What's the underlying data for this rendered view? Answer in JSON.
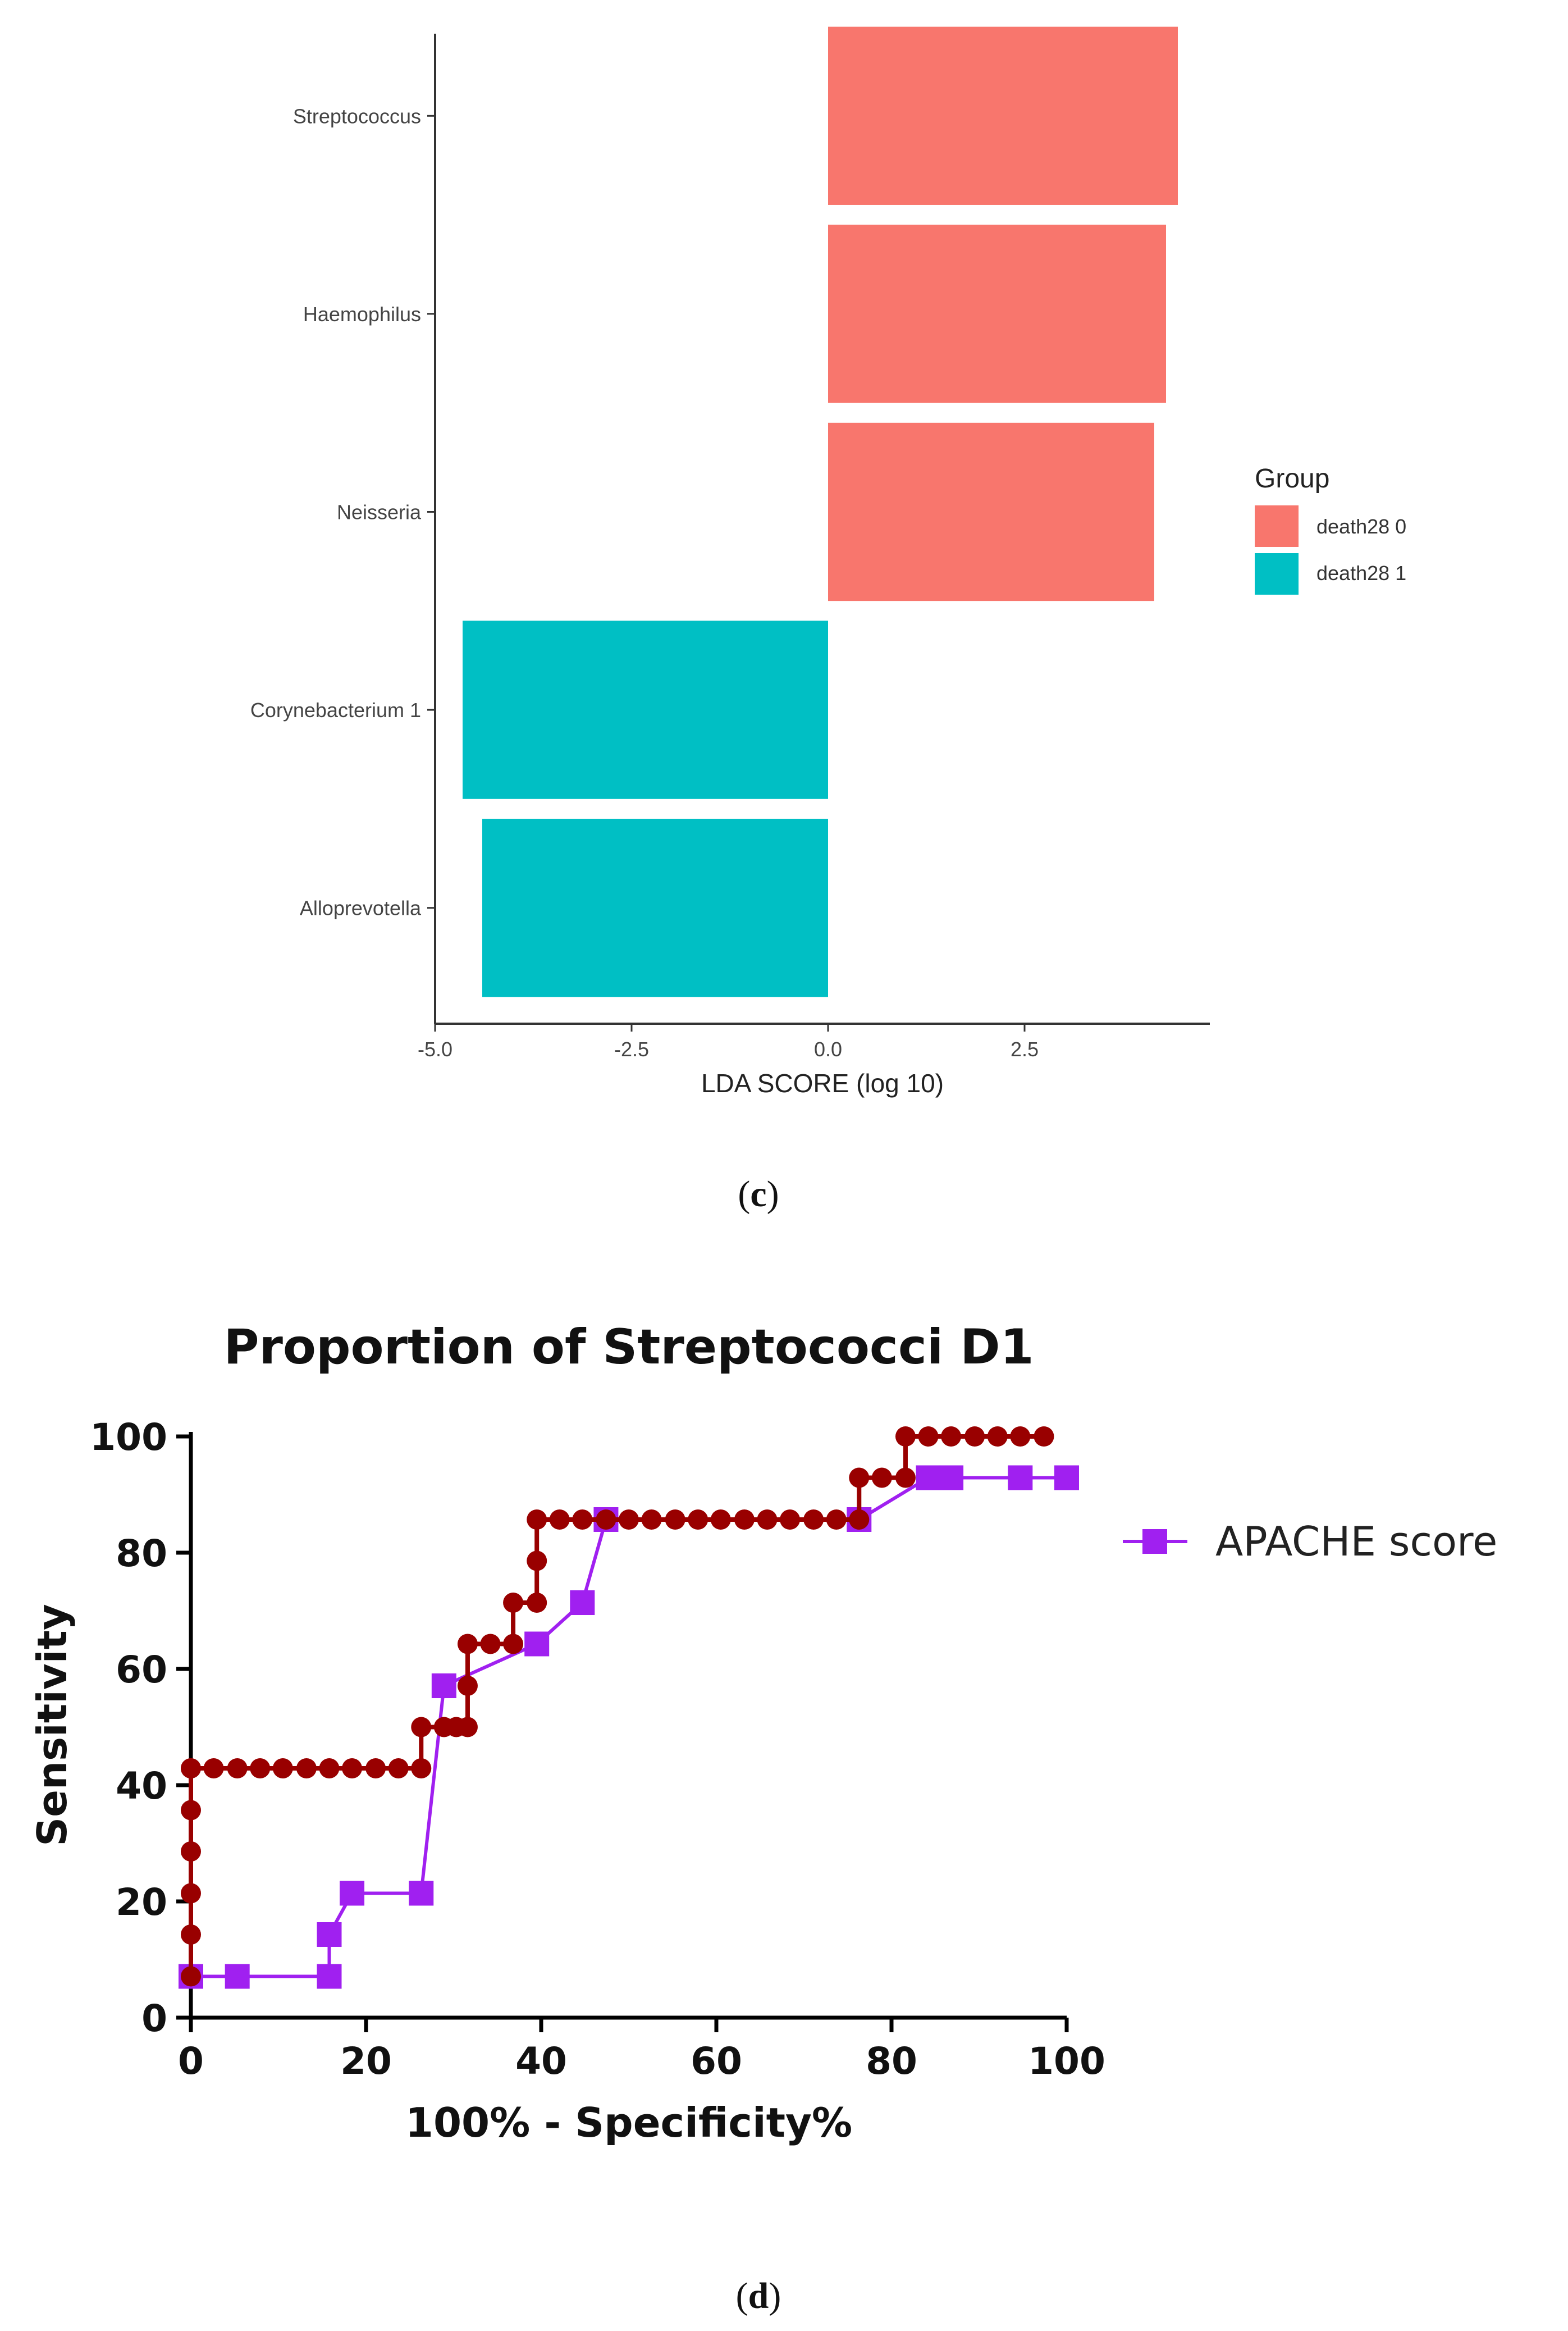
{
  "chart_data": [
    {
      "type": "bar",
      "orientation": "horizontal",
      "title": "",
      "xlabel": "LDA SCORE (log 10)",
      "ylabel": "",
      "xlim": [
        -5.0,
        5.0
      ],
      "xticks": [
        "-5.0",
        "-2.5",
        "0.0",
        "2.5"
      ],
      "xtick_values": [
        -5.0,
        -2.5,
        0.0,
        2.5
      ],
      "categories": [
        "Streptococcus",
        "Haemophilus",
        "Neisseria",
        "Corynebacterium 1",
        "Alloprevotella"
      ],
      "values": [
        4.45,
        4.3,
        4.15,
        -4.65,
        -4.4
      ],
      "groups": [
        "death28 0",
        "death28 0",
        "death28 0",
        "death28 1",
        "death28 1"
      ],
      "legend": {
        "title": "Group",
        "position": "right",
        "entries": [
          {
            "label": "death28 0",
            "color": "#F8766D"
          },
          {
            "label": "death28 1",
            "color": "#00BFC4"
          }
        ]
      },
      "grid": false,
      "panel_label": "(c)",
      "panel_letter": "c"
    },
    {
      "type": "line",
      "title": "Proportion of Streptococci D1",
      "xlabel": "100% - Specificity%",
      "ylabel": "Sensitivity",
      "xlim": [
        0,
        100
      ],
      "ylim": [
        0,
        100
      ],
      "xticks": [
        "0",
        "20",
        "40",
        "60",
        "80",
        "100"
      ],
      "yticks": [
        "0",
        "20",
        "40",
        "60",
        "80",
        "100"
      ],
      "tick_values": [
        0,
        20,
        40,
        60,
        80,
        100
      ],
      "grid": false,
      "legend": {
        "position": "right",
        "entries": [
          {
            "label": "APACHE score",
            "color": "#A020F0",
            "marker": "square"
          }
        ]
      },
      "series": [
        {
          "name": "Proportion of Streptococci D1",
          "color": "#990000",
          "marker": "circle",
          "step": true,
          "in_legend": false,
          "x": [
            0,
            0,
            0,
            0,
            0,
            0,
            0,
            2.6,
            5.3,
            7.9,
            10.5,
            13.2,
            15.8,
            18.4,
            21.1,
            23.7,
            26.3,
            26.3,
            28.9,
            30.3,
            31.6,
            31.6,
            31.6,
            34.2,
            36.8,
            36.8,
            39.5,
            39.5,
            39.5,
            42.1,
            44.7,
            47.4,
            50,
            52.6,
            55.3,
            57.9,
            60.5,
            63.2,
            65.8,
            68.4,
            71.1,
            73.7,
            76.3,
            76.3,
            78.9,
            81.6,
            81.6,
            84.2,
            86.8,
            89.5,
            92.1,
            94.7,
            97.4
          ],
          "y": [
            7.1,
            14.3,
            21.4,
            28.6,
            35.7,
            42.9,
            42.9,
            42.9,
            42.9,
            42.9,
            42.9,
            42.9,
            42.9,
            42.9,
            42.9,
            42.9,
            42.9,
            50,
            50,
            50,
            50,
            57.1,
            64.3,
            64.3,
            64.3,
            71.4,
            71.4,
            78.6,
            85.7,
            85.7,
            85.7,
            85.7,
            85.7,
            85.7,
            85.7,
            85.7,
            85.7,
            85.7,
            85.7,
            85.7,
            85.7,
            85.7,
            85.7,
            92.9,
            92.9,
            92.9,
            100,
            100,
            100,
            100,
            100,
            100,
            100
          ]
        },
        {
          "name": "APACHE score",
          "color": "#A020F0",
          "marker": "square",
          "step": false,
          "in_legend": true,
          "x": [
            0,
            5.3,
            15.8,
            15.8,
            18.4,
            26.3,
            28.9,
            39.5,
            44.7,
            47.4,
            76.3,
            84.2,
            86.8,
            94.7,
            100
          ],
          "y": [
            7.1,
            7.1,
            7.1,
            14.3,
            21.4,
            21.4,
            57.1,
            64.3,
            71.4,
            85.7,
            85.7,
            92.9,
            92.9,
            92.9,
            92.9
          ]
        }
      ],
      "panel_label": "(d)",
      "panel_letter": "d"
    }
  ]
}
